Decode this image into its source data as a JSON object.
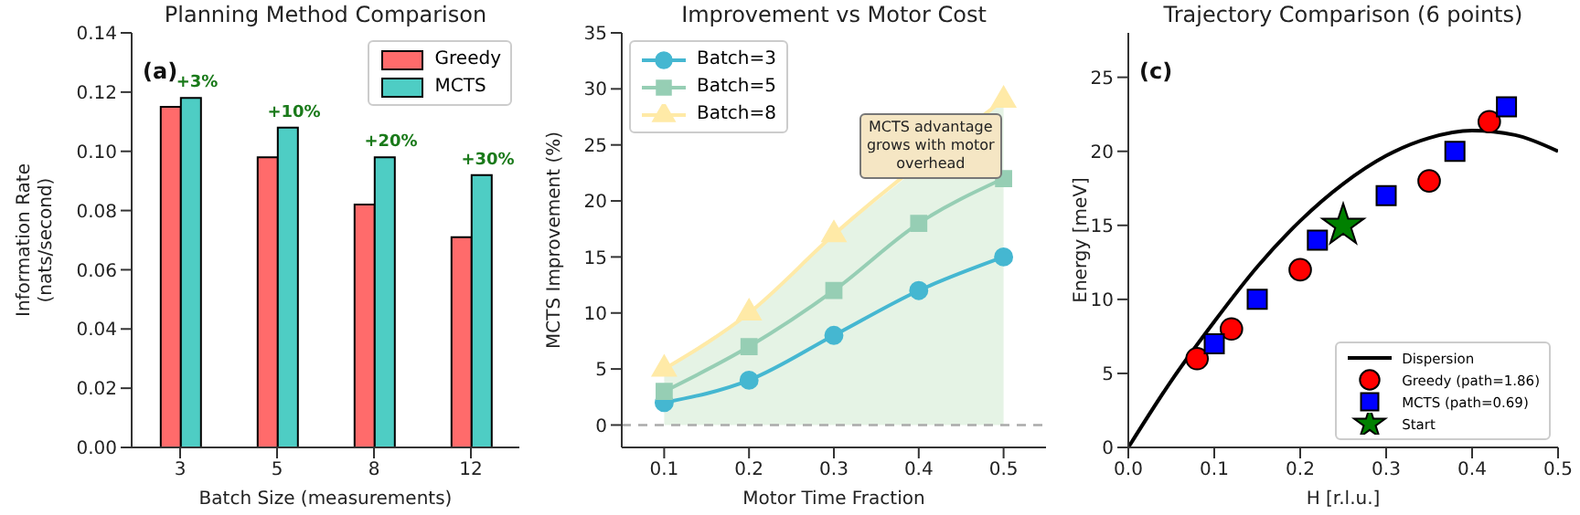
{
  "chart_data": [
    {
      "type": "bar",
      "title": "Planning Method Comparison",
      "xlabel": "Batch Size (measurements)",
      "ylabel": "Information Rate\n(nats/second)",
      "categories": [
        "3",
        "5",
        "8",
        "12"
      ],
      "series": [
        {
          "name": "Greedy",
          "color": "#ff6b6b",
          "values": [
            0.115,
            0.098,
            0.082,
            0.071
          ]
        },
        {
          "name": "MCTS",
          "color": "#4ecdc4",
          "values": [
            0.118,
            0.108,
            0.098,
            0.092
          ]
        }
      ],
      "ylim": [
        0,
        0.14
      ],
      "yticks": [
        {
          "value": 0,
          "label": "0.00"
        },
        {
          "value": 0.02,
          "label": "0.02"
        },
        {
          "value": 0.04,
          "label": "0.04"
        },
        {
          "value": 0.06,
          "label": "0.06"
        },
        {
          "value": 0.08,
          "label": "0.08"
        },
        {
          "value": 0.1,
          "label": "0.10"
        },
        {
          "value": 0.12,
          "label": "0.12"
        },
        {
          "value": 0.14,
          "label": "0.14"
        }
      ],
      "legend": "top right",
      "annotations": [
        "(a)",
        {
          "text": "+3%",
          "x": "3",
          "y": 0.118
        },
        {
          "text": "+10%",
          "x": "5",
          "y": 0.108
        },
        {
          "text": "+20%",
          "x": "8",
          "y": 0.098
        },
        {
          "text": "+30%",
          "x": "12",
          "y": 0.092
        }
      ]
    },
    {
      "type": "line",
      "title": "Improvement vs Motor Cost",
      "xlabel": "Motor Time Fraction",
      "ylabel": "MCTS Improvement (%)",
      "x": [
        0.1,
        0.2,
        0.3,
        0.4,
        0.5
      ],
      "series": [
        {
          "type": "area",
          "color": "#2ca02c",
          "values": [
            5,
            10,
            17,
            null,
            29
          ]
        },
        {
          "name": "Batch=3",
          "color": "#45b7d1",
          "marker": "circle",
          "values": [
            2,
            4,
            8,
            12,
            15
          ]
        },
        {
          "name": "Batch=5",
          "color": "#96ceb4",
          "marker": "square",
          "values": [
            3,
            7,
            12,
            18,
            22
          ]
        },
        {
          "name": "Batch=8",
          "color": "#ffeaa7",
          "marker": "triangle",
          "values": [
            5,
            10,
            17,
            null,
            29
          ]
        }
      ],
      "xlim": [
        0.05,
        0.55
      ],
      "xticks": [
        0.1,
        0.2,
        0.3,
        0.4,
        0.5
      ],
      "ylim": [
        -2,
        35
      ],
      "yticks": [
        0,
        5,
        10,
        15,
        20,
        25,
        30,
        35
      ],
      "ref_lines": [
        {
          "axis": "y",
          "value": 0,
          "color": "#aaaaaa",
          "line_style": "dashed"
        }
      ],
      "legend": "top left",
      "annotations": [
        "MCTS advantage grows with motor overhead"
      ]
    },
    {
      "type": "scatter",
      "title": "Trajectory Comparison (6 points)",
      "xlabel": "H [r.l.u.]",
      "ylabel": "Energy [meV]",
      "series": [
        {
          "name": "Dispersion",
          "type": "line",
          "color": "#000000",
          "marker": "none",
          "x": [
            0,
            0.05,
            0.1,
            0.15,
            0.2,
            0.25,
            0.3,
            0.35,
            0.4,
            0.45,
            0.5
          ],
          "values": [
            0,
            4.5,
            8.5,
            12.2,
            15.3,
            17.8,
            19.7,
            20.9,
            21.4,
            21.1,
            20
          ]
        },
        {
          "name": "Greedy (path=1.86)",
          "color": "#ff0000",
          "marker": "circle",
          "x": [
            0.08,
            0.12,
            0.2,
            0.35,
            0.42
          ],
          "values": [
            6,
            8,
            12,
            18,
            22
          ]
        },
        {
          "name": "MCTS (path=0.69)",
          "color": "#0000ff",
          "marker": "square",
          "x": [
            0.1,
            0.15,
            0.22,
            0.3,
            0.38,
            0.44
          ],
          "values": [
            7,
            10,
            14,
            17,
            20,
            23
          ]
        },
        {
          "name": "Start",
          "color": "#008000",
          "marker": "star",
          "x": [
            0.25
          ],
          "values": [
            15
          ]
        }
      ],
      "xlim": [
        0,
        0.5
      ],
      "xticks": [
        {
          "value": 0,
          "label": "0.0"
        },
        0.1,
        0.2,
        0.3,
        0.4,
        0.5
      ],
      "ylim": [
        0,
        28
      ],
      "yticks": [
        0,
        5,
        10,
        15,
        20,
        25
      ],
      "legend": "bottom right",
      "annotations": [
        "(c)"
      ]
    }
  ]
}
